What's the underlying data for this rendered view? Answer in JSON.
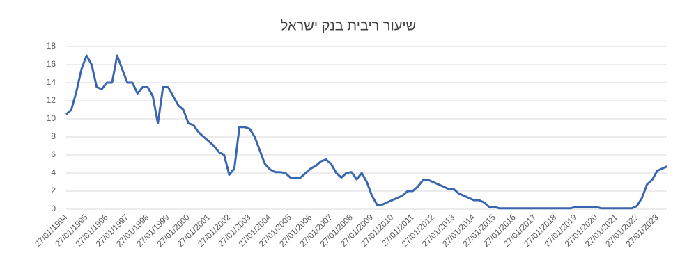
{
  "chart_data": {
    "type": "line",
    "title": "שיעור ריבית בנק ישראל",
    "categories": [
      "27/01/1994",
      null,
      null,
      null,
      "27/01/1995",
      null,
      null,
      null,
      "27/01/1996",
      null,
      null,
      null,
      "27/01/1997",
      null,
      null,
      null,
      "27/01/1998",
      null,
      null,
      null,
      "27/01/1999",
      null,
      null,
      null,
      "27/01/2000",
      null,
      null,
      null,
      "27/01/2001",
      null,
      null,
      null,
      "27/01/2002",
      null,
      null,
      null,
      "27/01/2003",
      null,
      null,
      null,
      "27/01/2004",
      null,
      null,
      null,
      "27/01/2005",
      null,
      null,
      null,
      "27/01/2006",
      null,
      null,
      null,
      "27/01/2007",
      null,
      null,
      null,
      "27/01/2008",
      null,
      null,
      null,
      "27/01/2009",
      null,
      null,
      null,
      "27/01/2010",
      null,
      null,
      null,
      "27/01/2011",
      null,
      null,
      null,
      "27/01/2012",
      null,
      null,
      null,
      "27/01/2013",
      null,
      null,
      null,
      "27/01/2014",
      null,
      null,
      null,
      "27/01/2015",
      null,
      null,
      null,
      "27/01/2016",
      null,
      null,
      null,
      "27/01/2017",
      null,
      null,
      null,
      "27/01/2018",
      null,
      null,
      null,
      "27/01/2019",
      null,
      null,
      null,
      "27/01/2020",
      null,
      null,
      null,
      "27/01/2021",
      null,
      null,
      null,
      "27/01/2022",
      null,
      null,
      null,
      "27/01/2023",
      null,
      null
    ],
    "values": [
      10.5,
      11,
      13,
      15.5,
      17,
      16,
      13.5,
      13.3,
      14,
      14,
      17,
      15.5,
      14,
      14,
      12.8,
      13.5,
      13.5,
      12.5,
      9.5,
      13.5,
      13.5,
      12.5,
      11.5,
      11,
      9.5,
      9.3,
      8.5,
      8,
      7.5,
      7,
      6.3,
      6,
      3.8,
      4.5,
      9.1,
      9.1,
      8.9,
      8,
      6.5,
      5,
      4.4,
      4.1,
      4.1,
      4,
      3.5,
      3.5,
      3.5,
      4,
      4.5,
      4.8,
      5.3,
      5.5,
      5,
      4,
      3.5,
      4,
      4.1,
      3.3,
      4,
      3,
      1.5,
      0.5,
      0.5,
      0.75,
      1,
      1.25,
      1.5,
      2,
      2,
      2.5,
      3.2,
      3.25,
      3,
      2.75,
      2.5,
      2.25,
      2.25,
      1.75,
      1.5,
      1.25,
      1,
      1,
      0.75,
      0.25,
      0.25,
      0.1,
      0.1,
      0.1,
      0.1,
      0.1,
      0.1,
      0.1,
      0.1,
      0.1,
      0.1,
      0.1,
      0.1,
      0.1,
      0.1,
      0.1,
      0.25,
      0.25,
      0.25,
      0.25,
      0.25,
      0.1,
      0.1,
      0.1,
      0.1,
      0.1,
      0.1,
      0.1,
      0.35,
      1.25,
      2.75,
      3.25,
      4.25,
      4.5,
      4.75
    ],
    "color": "#3a66b0",
    "ylim": [
      0,
      18
    ],
    "yticks": [
      0,
      2,
      4,
      6,
      8,
      10,
      12,
      14,
      16,
      18
    ],
    "grid": true
  }
}
